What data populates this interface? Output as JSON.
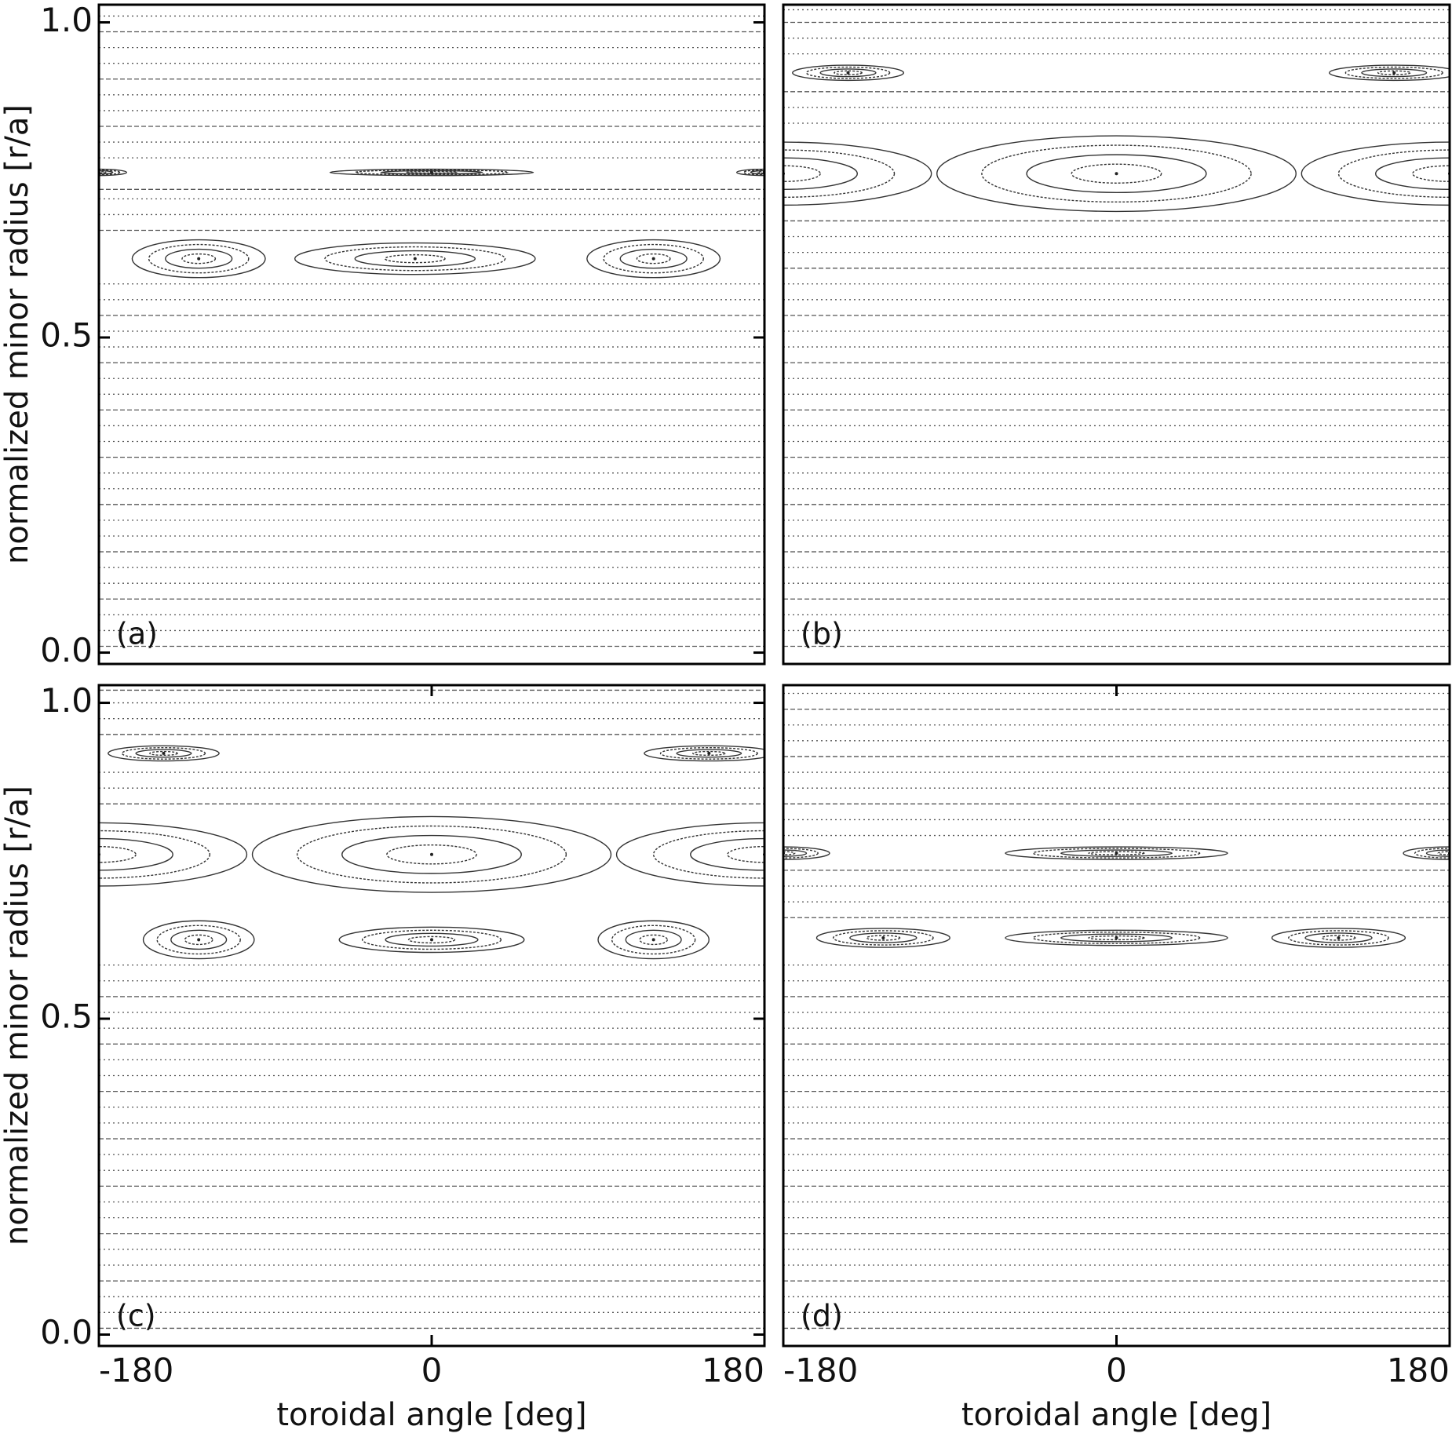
{
  "chart_data": [
    {
      "type": "poincare",
      "label": "(a)",
      "ylabel": "normalized minor radius [r/a]",
      "xlim": [
        -180,
        180
      ],
      "ylim": [
        -0.018,
        1.028
      ],
      "yticks": [
        {
          "value": 0,
          "label": "0.0"
        },
        {
          "value": 0.5,
          "label": "0.5"
        },
        {
          "value": 1.0,
          "label": "1.0"
        }
      ],
      "surfaces": [
        0.01,
        0.035,
        0.06,
        0.085,
        0.11,
        0.135,
        0.16,
        0.185,
        0.21,
        0.235,
        0.26,
        0.285,
        0.31,
        0.335,
        0.36,
        0.385,
        0.41,
        0.435,
        0.46,
        0.485,
        0.51,
        0.535,
        0.56,
        0.585,
        0.67,
        0.695,
        0.72,
        0.735,
        0.785,
        0.81,
        0.835,
        0.86,
        0.885,
        0.91,
        0.935,
        0.96,
        0.985,
        1.01
      ],
      "islands": [
        {
          "x": -126,
          "r": 0.625,
          "width": 36,
          "height": 0.03
        },
        {
          "x": -9,
          "r": 0.625,
          "width": 65,
          "height": 0.025
        },
        {
          "x": 120,
          "r": 0.625,
          "width": 36,
          "height": 0.03
        },
        {
          "x": -180,
          "r": 0.762,
          "width": 15,
          "height": 0.005
        },
        {
          "x": 0,
          "r": 0.762,
          "width": 55,
          "height": 0.005
        },
        {
          "x": 180,
          "r": 0.762,
          "width": 15,
          "height": 0.005
        }
      ]
    },
    {
      "type": "poincare",
      "label": "(b)",
      "xlim": [
        -180,
        180
      ],
      "ylim": [
        -0.018,
        1.028
      ],
      "surfaces": [
        0.01,
        0.035,
        0.06,
        0.085,
        0.11,
        0.135,
        0.16,
        0.185,
        0.21,
        0.235,
        0.26,
        0.285,
        0.31,
        0.335,
        0.36,
        0.385,
        0.41,
        0.435,
        0.46,
        0.485,
        0.51,
        0.535,
        0.56,
        0.585,
        0.61,
        0.635,
        0.66,
        0.685,
        0.84,
        0.865,
        0.89,
        0.95,
        0.975,
        1.0,
        1.02
      ],
      "islands": [
        {
          "x": -180,
          "r": 0.76,
          "width": 80,
          "height": 0.05
        },
        {
          "x": 0,
          "r": 0.76,
          "width": 97,
          "height": 0.06
        },
        {
          "x": 180,
          "r": 0.76,
          "width": 80,
          "height": 0.05
        },
        {
          "x": -145,
          "r": 0.92,
          "width": 30,
          "height": 0.012
        },
        {
          "x": 150,
          "r": 0.92,
          "width": 35,
          "height": 0.012
        }
      ]
    },
    {
      "type": "poincare",
      "label": "(c)",
      "ylabel": "normalized minor radius [r/a]",
      "xlabel": "toroidal angle [deg]",
      "xlim": [
        -180,
        180
      ],
      "ylim": [
        -0.018,
        1.028
      ],
      "xticks": [
        -180,
        0,
        180
      ],
      "yticks": [
        {
          "value": 0,
          "label": "0.0"
        },
        {
          "value": 0.5,
          "label": "0.5"
        },
        {
          "value": 1.0,
          "label": "1.0"
        }
      ],
      "surfaces": [
        0.01,
        0.035,
        0.06,
        0.085,
        0.11,
        0.135,
        0.16,
        0.185,
        0.21,
        0.235,
        0.26,
        0.285,
        0.31,
        0.335,
        0.36,
        0.385,
        0.41,
        0.435,
        0.46,
        0.485,
        0.51,
        0.535,
        0.56,
        0.585,
        0.84,
        0.865,
        0.89,
        0.95,
        0.975,
        1.0,
        1.02
      ],
      "islands": [
        {
          "x": -180,
          "r": 0.76,
          "width": 80,
          "height": 0.05
        },
        {
          "x": 0,
          "r": 0.76,
          "width": 97,
          "height": 0.06
        },
        {
          "x": 180,
          "r": 0.76,
          "width": 80,
          "height": 0.05
        },
        {
          "x": -145,
          "r": 0.92,
          "width": 30,
          "height": 0.012
        },
        {
          "x": 150,
          "r": 0.92,
          "width": 35,
          "height": 0.012
        },
        {
          "x": -126,
          "r": 0.625,
          "width": 30,
          "height": 0.03
        },
        {
          "x": 0,
          "r": 0.625,
          "width": 50,
          "height": 0.02
        },
        {
          "x": 120,
          "r": 0.625,
          "width": 30,
          "height": 0.03
        }
      ]
    },
    {
      "type": "poincare",
      "label": "(d)",
      "xlabel": "toroidal angle [deg]",
      "xlim": [
        -180,
        180
      ],
      "ylim": [
        -0.018,
        1.028
      ],
      "xticks": [
        -180,
        0,
        180
      ],
      "surfaces": [
        0.01,
        0.035,
        0.06,
        0.085,
        0.11,
        0.135,
        0.16,
        0.185,
        0.21,
        0.235,
        0.26,
        0.285,
        0.31,
        0.335,
        0.36,
        0.385,
        0.41,
        0.435,
        0.46,
        0.485,
        0.51,
        0.535,
        0.56,
        0.585,
        0.66,
        0.685,
        0.71,
        0.735,
        0.79,
        0.815,
        0.84,
        0.865,
        0.89,
        0.915,
        0.94,
        0.965,
        0.99,
        1.015
      ],
      "islands": [
        {
          "x": -126,
          "r": 0.628,
          "width": 36,
          "height": 0.015
        },
        {
          "x": 0,
          "r": 0.628,
          "width": 60,
          "height": 0.012
        },
        {
          "x": 120,
          "r": 0.628,
          "width": 36,
          "height": 0.015
        },
        {
          "x": -180,
          "r": 0.762,
          "width": 25,
          "height": 0.01
        },
        {
          "x": 0,
          "r": 0.762,
          "width": 60,
          "height": 0.01
        },
        {
          "x": 180,
          "r": 0.762,
          "width": 25,
          "height": 0.01
        }
      ]
    }
  ]
}
